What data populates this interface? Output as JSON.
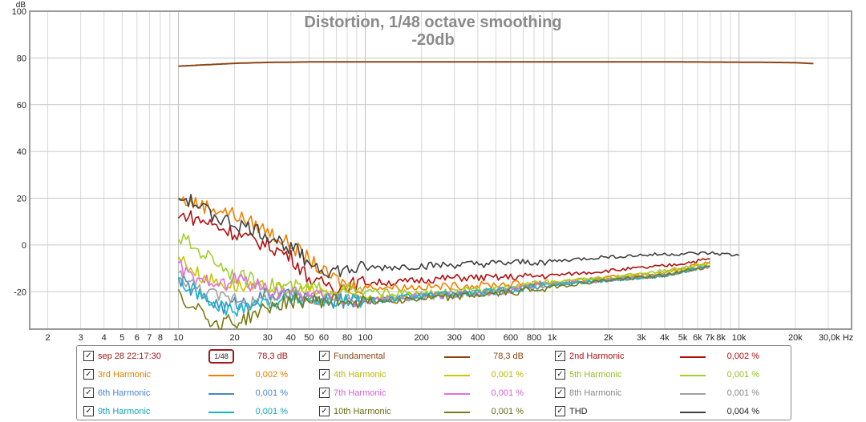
{
  "window": {
    "title_line1": "Distortion, 1/48 octave smoothing",
    "title_line2": "-20db"
  },
  "chart_data": {
    "type": "line",
    "title": "Distortion, 1/48 octave smoothing",
    "subtitle": "-20db",
    "ylabel": "dB",
    "xlabel": "Hz",
    "xscale": "log",
    "xlim": [
      1.6,
      40000
    ],
    "ylim": [
      -36,
      100
    ],
    "grid": true,
    "y_ticks": [
      100,
      80,
      60,
      40,
      20,
      0,
      -20
    ],
    "y_tick_labels": [
      "100",
      "80",
      "60",
      "40",
      "20",
      "0",
      "-20"
    ],
    "x_ticks": [
      2,
      3,
      4,
      5,
      6,
      7,
      8,
      10,
      20,
      30,
      40,
      50,
      60,
      80,
      100,
      200,
      300,
      400,
      600,
      800,
      1000,
      2000,
      3000,
      4000,
      5000,
      6000,
      7000,
      8000,
      10000,
      20000,
      30000
    ],
    "x_tick_labels": [
      "2",
      "3",
      "4",
      "5",
      "6",
      "7",
      "8",
      "10",
      "20",
      "30",
      "40",
      "50",
      "60",
      "80",
      "100",
      "200",
      "300",
      "400",
      "600",
      "800",
      "1k",
      "2k",
      "3k",
      "4k",
      "5k",
      "6k",
      "7k",
      "8k",
      "10k",
      "20k",
      "30,0k Hz"
    ],
    "series": [
      {
        "name": "Fundamental",
        "color": "#8b4513",
        "x": [
          10,
          15,
          20,
          30,
          50,
          100,
          200,
          500,
          1000,
          2000,
          5000,
          10000,
          15000,
          20000,
          25000
        ],
        "y": [
          76.5,
          77.2,
          77.7,
          78.1,
          78.3,
          78.3,
          78.3,
          78.3,
          78.3,
          78.3,
          78.3,
          78.2,
          78.1,
          78.0,
          77.6
        ]
      },
      {
        "name": "2nd Harmonic",
        "color": "#b01010",
        "x": [
          10,
          11,
          12,
          14,
          16,
          20,
          25,
          30,
          40,
          50,
          55,
          60,
          70,
          100,
          150,
          200,
          300,
          500,
          1000,
          2000,
          4000,
          7000
        ],
        "y": [
          11.5,
          13,
          11.5,
          10,
          8,
          5,
          2,
          0,
          -5,
          -14,
          -17,
          -16,
          -18,
          -16,
          -16,
          -15,
          -14,
          -14,
          -13,
          -11,
          -9,
          -6
        ]
      },
      {
        "name": "3rd Harmonic",
        "color": "#f08000",
        "x": [
          10,
          12,
          15,
          20,
          30,
          40,
          50,
          60,
          80,
          100,
          200,
          500,
          1000,
          2000,
          4000,
          7000
        ],
        "y": [
          19.5,
          18,
          16,
          13,
          6,
          0,
          -6,
          -12,
          -17,
          -18,
          -18,
          -17,
          -16,
          -14,
          -12,
          -7
        ]
      },
      {
        "name": "4th Harmonic",
        "color": "#c8c800",
        "x": [
          10,
          11,
          13,
          15,
          18,
          20,
          25,
          30,
          40,
          60,
          100,
          200,
          500,
          1000,
          2000,
          4000,
          7000
        ],
        "y": [
          -5,
          -8,
          -13,
          -15,
          -17,
          -17,
          -19,
          -18,
          -20,
          -20,
          -22,
          -22,
          -19,
          -16,
          -14,
          -12,
          -8
        ]
      },
      {
        "name": "5th Harmonic",
        "color": "#a0d030",
        "x": [
          10,
          11,
          12,
          14,
          16,
          20,
          25,
          30,
          40,
          60,
          100,
          200,
          500,
          1000,
          2000,
          4000,
          7000
        ],
        "y": [
          2.5,
          2,
          -1,
          -4,
          -7,
          -13,
          -15,
          -17,
          -18,
          -19,
          -20,
          -21,
          -19,
          -16,
          -14,
          -11,
          -8
        ]
      },
      {
        "name": "6th Harmonic",
        "color": "#4a86c8",
        "x": [
          10,
          11,
          13,
          15,
          18,
          20,
          25,
          30,
          40,
          60,
          100,
          200,
          500,
          1000,
          2000,
          4000,
          7000
        ],
        "y": [
          -14,
          -17,
          -22,
          -24,
          -27,
          -25,
          -24,
          -21,
          -22,
          -24,
          -24,
          -22,
          -20,
          -17,
          -15,
          -13,
          -9
        ]
      },
      {
        "name": "7th Harmonic",
        "color": "#e070e0",
        "x": [
          10,
          11,
          13,
          15,
          18,
          20,
          25,
          30,
          40,
          60,
          100,
          200,
          500,
          1000,
          2000,
          4000,
          7000
        ],
        "y": [
          -8,
          -12,
          -17,
          -14,
          -18,
          -14,
          -17,
          -19,
          -21,
          -22,
          -24,
          -22,
          -20,
          -17,
          -15,
          -13,
          -9
        ]
      },
      {
        "name": "8th Harmonic",
        "color": "#a0a0a0",
        "x": [
          10,
          11,
          13,
          15,
          18,
          20,
          25,
          30,
          40,
          60,
          100,
          200,
          500,
          1000,
          2000,
          4000,
          7000
        ],
        "y": [
          -12,
          -15,
          -19,
          -21,
          -23,
          -22,
          -25,
          -23,
          -22,
          -23,
          -24,
          -22,
          -20,
          -17,
          -15,
          -13,
          -9
        ]
      },
      {
        "name": "9th Harmonic",
        "color": "#10b8c8",
        "x": [
          10,
          11,
          13,
          15,
          18,
          20,
          25,
          30,
          40,
          60,
          100,
          200,
          500,
          1000,
          2000,
          4000,
          7000
        ],
        "y": [
          -14,
          -18,
          -21,
          -26,
          -27,
          -29,
          -24,
          -25,
          -23,
          -24,
          -24,
          -22,
          -20,
          -17,
          -15,
          -13,
          -9
        ]
      },
      {
        "name": "10th Harmonic",
        "color": "#7a7a10",
        "x": [
          10,
          11,
          12,
          14,
          16,
          18,
          20,
          25,
          30,
          40,
          60,
          100,
          200,
          500,
          1000,
          2000,
          4000,
          7000
        ],
        "y": [
          -19,
          -26,
          -24,
          -30,
          -35,
          -31,
          -34,
          -30,
          -27,
          -24,
          -24,
          -24,
          -23,
          -21,
          -18,
          -15,
          -13,
          -9
        ]
      },
      {
        "name": "THD",
        "color": "#404040",
        "x": [
          10,
          11,
          12,
          14,
          16,
          20,
          25,
          30,
          40,
          50,
          55,
          60,
          80,
          100,
          200,
          500,
          1000,
          2000,
          4000,
          7000,
          10000
        ],
        "y": [
          20,
          19.5,
          18,
          15,
          12,
          9,
          7,
          4,
          -1,
          -7,
          -9,
          -11,
          -11,
          -10,
          -9,
          -8,
          -7,
          -5,
          -4,
          -3.5,
          -4.5
        ]
      }
    ]
  },
  "legend": {
    "rows": [
      [
        {
          "name": "sep 28 22:17:30",
          "value": "78,3 dB",
          "color": "#a01818",
          "text_color": "#a01818",
          "badge": "1/48"
        },
        {
          "name": "Fundamental",
          "value": "78,3 dB",
          "color": "#8b4513",
          "text_color": "#8b4513"
        },
        {
          "name": "2nd Harmonic",
          "value": "0,002 %",
          "color": "#b01010",
          "text_color": "#b01010"
        }
      ],
      [
        {
          "name": "3rd Harmonic",
          "value": "0,002 %",
          "color": "#f08000",
          "text_color": "#e08000"
        },
        {
          "name": "4th Harmonic",
          "value": "0,001 %",
          "color": "#c8c800",
          "text_color": "#b8b800"
        },
        {
          "name": "5th Harmonic",
          "value": "0,001 %",
          "color": "#a0d030",
          "text_color": "#90c020"
        }
      ],
      [
        {
          "name": "6th Harmonic",
          "value": "0,001 %",
          "color": "#4a86c8",
          "text_color": "#4a86c8"
        },
        {
          "name": "7th Harmonic",
          "value": "0,001 %",
          "color": "#e070e0",
          "text_color": "#d060d0"
        },
        {
          "name": "8th Harmonic",
          "value": "0,001 %",
          "color": "#a0a0a0",
          "text_color": "#888888"
        }
      ],
      [
        {
          "name": "9th Harmonic",
          "value": "0,001 %",
          "color": "#10b8c8",
          "text_color": "#10a8b8"
        },
        {
          "name": "10th Harmonic",
          "value": "0,001 %",
          "color": "#7a7a10",
          "text_color": "#6a6a10"
        },
        {
          "name": "THD",
          "value": "0,004 %",
          "color": "#404040",
          "text_color": "#222222"
        }
      ]
    ]
  }
}
